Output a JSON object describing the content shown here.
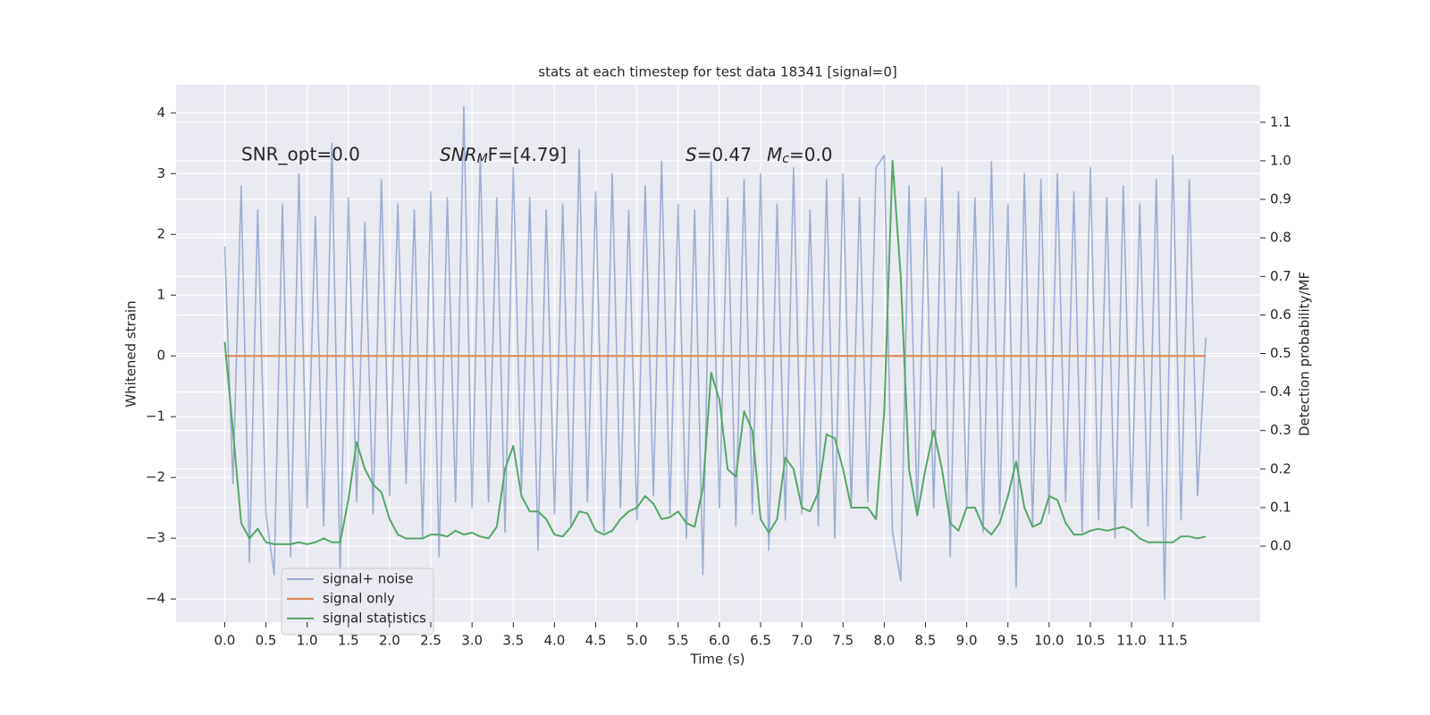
{
  "chart_data": {
    "type": "line",
    "title": "stats at each timestep for test data 18341 [signal=0]",
    "xlabel": "Time (s)",
    "ylabel": "Whitened strain",
    "y2label": "Detection probability/MF",
    "annotations": [
      {
        "text": "SNR_opt=0.0"
      },
      {
        "base": "SNR",
        "sub": "M",
        "rest": "F=[4.79]"
      },
      {
        "base": "S",
        "rest": "=0.47"
      },
      {
        "base": "M",
        "sub": "c",
        "rest": "=0.0"
      }
    ],
    "x": [
      0,
      0.1,
      0.2,
      0.3,
      0.4,
      0.5,
      0.6,
      0.7,
      0.8,
      0.9,
      1.0,
      1.1,
      1.2,
      1.3,
      1.4,
      1.5,
      1.6,
      1.7,
      1.8,
      1.9,
      2.0,
      2.1,
      2.2,
      2.3,
      2.4,
      2.5,
      2.6,
      2.7,
      2.8,
      2.9,
      3.0,
      3.1,
      3.2,
      3.3,
      3.4,
      3.5,
      3.6,
      3.7,
      3.8,
      3.9,
      4.0,
      4.1,
      4.2,
      4.3,
      4.4,
      4.5,
      4.6,
      4.7,
      4.8,
      4.9,
      5.0,
      5.1,
      5.2,
      5.3,
      5.4,
      5.5,
      5.6,
      5.7,
      5.8,
      5.9,
      6.0,
      6.1,
      6.2,
      6.3,
      6.4,
      6.5,
      6.6,
      6.7,
      6.8,
      6.9,
      7.0,
      7.1,
      7.2,
      7.3,
      7.4,
      7.5,
      7.6,
      7.7,
      7.8,
      7.9,
      8.0,
      8.1,
      8.2,
      8.3,
      8.4,
      8.5,
      8.6,
      8.7,
      8.8,
      8.9,
      9.0,
      9.1,
      9.2,
      9.3,
      9.4,
      9.5,
      9.6,
      9.7,
      9.8,
      9.9,
      10.0,
      10.1,
      10.2,
      10.3,
      10.4,
      10.5,
      10.6,
      10.7,
      10.8,
      10.9,
      11.0,
      11.1,
      11.2,
      11.3,
      11.4,
      11.5,
      11.6,
      11.7,
      11.8,
      11.9
    ],
    "series": [
      {
        "name": "signal+ noise",
        "color": "#4c72b0",
        "opacity": 0.5,
        "values": [
          1.8,
          -2.1,
          2.8,
          -3.4,
          2.4,
          -2.6,
          -3.6,
          2.5,
          -3.3,
          3.0,
          -2.5,
          2.3,
          -2.8,
          3.5,
          -3.6,
          2.6,
          -2.4,
          2.2,
          -2.6,
          2.9,
          -2.3,
          2.5,
          -2.1,
          2.4,
          -3.0,
          2.7,
          -3.3,
          2.6,
          -2.4,
          4.1,
          -2.5,
          3.3,
          -2.4,
          2.6,
          -2.9,
          3.1,
          -2.2,
          2.6,
          -3.2,
          2.4,
          -2.6,
          2.5,
          -2.8,
          3.4,
          -2.4,
          2.7,
          -2.9,
          3.0,
          -2.5,
          2.4,
          -2.7,
          2.8,
          -2.3,
          3.2,
          -2.6,
          2.5,
          -3.0,
          2.4,
          -3.6,
          3.2,
          -2.5,
          2.6,
          -2.8,
          2.9,
          -2.6,
          3.0,
          -3.2,
          2.5,
          -2.7,
          3.1,
          -2.6,
          2.4,
          -2.8,
          2.9,
          -3.0,
          3.0,
          -2.5,
          2.6,
          -2.4,
          3.1,
          3.3,
          -2.9,
          -3.7,
          2.8,
          -2.6,
          2.6,
          -2.5,
          3.1,
          -3.3,
          2.7,
          -2.5,
          2.6,
          -2.9,
          3.2,
          -2.6,
          2.5,
          -3.8,
          3.0,
          -2.8,
          2.9,
          -2.6,
          3.0,
          -2.4,
          2.7,
          -2.9,
          3.1,
          -2.7,
          2.6,
          -3.0,
          2.8,
          -2.5,
          2.5,
          -2.8,
          2.9,
          -4.0,
          3.3,
          -2.7,
          2.9,
          -2.3,
          0.3
        ]
      },
      {
        "name": "signal only",
        "color": "#dd8452",
        "x": [
          0,
          11.9
        ],
        "values": [
          0,
          0
        ]
      },
      {
        "name": "signal statistics",
        "color": "#55a868",
        "axis": "y2",
        "values": [
          0.53,
          0.3,
          0.06,
          0.02,
          0.045,
          0.01,
          0.005,
          0.005,
          0.005,
          0.01,
          0.005,
          0.01,
          0.02,
          0.01,
          0.01,
          0.12,
          0.27,
          0.2,
          0.16,
          0.14,
          0.07,
          0.03,
          0.02,
          0.02,
          0.02,
          0.03,
          0.03,
          0.025,
          0.04,
          0.03,
          0.035,
          0.025,
          0.02,
          0.05,
          0.2,
          0.26,
          0.13,
          0.09,
          0.09,
          0.07,
          0.03,
          0.025,
          0.05,
          0.09,
          0.085,
          0.04,
          0.03,
          0.04,
          0.07,
          0.09,
          0.1,
          0.13,
          0.11,
          0.07,
          0.075,
          0.09,
          0.06,
          0.05,
          0.15,
          0.45,
          0.38,
          0.2,
          0.18,
          0.35,
          0.3,
          0.07,
          0.035,
          0.07,
          0.23,
          0.2,
          0.1,
          0.09,
          0.14,
          0.29,
          0.28,
          0.2,
          0.1,
          0.1,
          0.1,
          0.07,
          0.35,
          1.0,
          0.7,
          0.2,
          0.08,
          0.2,
          0.3,
          0.2,
          0.06,
          0.04,
          0.1,
          0.1,
          0.05,
          0.03,
          0.06,
          0.13,
          0.22,
          0.1,
          0.05,
          0.06,
          0.13,
          0.12,
          0.06,
          0.03,
          0.03,
          0.04,
          0.045,
          0.04,
          0.045,
          0.05,
          0.04,
          0.02,
          0.01,
          0.01,
          0.01,
          0.01,
          0.025,
          0.025,
          0.02,
          0.025
        ]
      }
    ],
    "xlim": [
      -0.59,
      12.56
    ],
    "ylim": [
      -4.38,
      4.46
    ],
    "y2lim": [
      -0.197,
      1.197
    ],
    "xticks": [
      {
        "value": 0,
        "label": "0.0"
      },
      0.5,
      {
        "value": 1,
        "label": "1.0"
      },
      1.5,
      {
        "value": 2,
        "label": "2.0"
      },
      2.5,
      {
        "value": 3,
        "label": "3.0"
      },
      3.5,
      {
        "value": 4,
        "label": "4.0"
      },
      4.5,
      {
        "value": 5,
        "label": "5.0"
      },
      5.5,
      {
        "value": 6,
        "label": "6.0"
      },
      6.5,
      {
        "value": 7,
        "label": "7.0"
      },
      7.5,
      {
        "value": 8,
        "label": "8.0"
      },
      8.5,
      {
        "value": 9,
        "label": "9.0"
      },
      9.5,
      {
        "value": 10,
        "label": "10.0"
      },
      10.5,
      {
        "value": 11,
        "label": "11.0"
      },
      11.5
    ],
    "yticks": [
      {
        "value": -4,
        "label": "−4"
      },
      {
        "value": -3,
        "label": "−3"
      },
      {
        "value": -2,
        "label": "−2"
      },
      {
        "value": -1,
        "label": "−1"
      },
      0,
      1,
      2,
      3,
      4
    ],
    "y2ticks": [
      {
        "value": 0,
        "label": "0.0"
      },
      0.1,
      0.2,
      0.3,
      0.4,
      0.5,
      0.6,
      0.7,
      0.8,
      0.9,
      {
        "value": 1,
        "label": "1.0"
      },
      1.1
    ],
    "grid": true,
    "legend": "lower left",
    "background": "#eaeaf2"
  }
}
